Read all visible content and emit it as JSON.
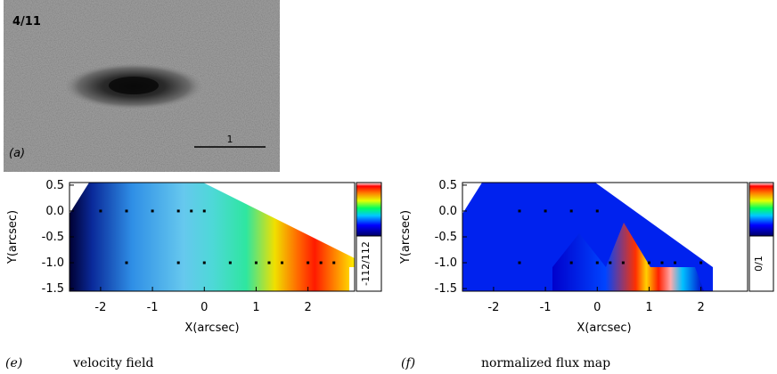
{
  "panel_a": {
    "label": "(a)",
    "corner_text": "4/11",
    "scale_bar_label": "1"
  },
  "panel_e": {
    "label": "(e)",
    "caption": "velocity field",
    "xlabel": "X(arcsec)",
    "ylabel": "Y(arcsec)",
    "x_ticks": [
      "-2",
      "-1",
      "0",
      "1",
      "2"
    ],
    "y_ticks": [
      "0.5",
      "0.0",
      "-0.5",
      "-1.0",
      "-1.5"
    ],
    "colorbar_label": "-112/112"
  },
  "panel_f": {
    "label": "(f)",
    "caption": "normalized flux map",
    "xlabel": "X(arcsec)",
    "ylabel": "Y(arcsec)",
    "x_ticks": [
      "-2",
      "-1",
      "0",
      "1",
      "2"
    ],
    "y_ticks": [
      "0.5",
      "0.0",
      "-0.5",
      "-1.0",
      "-1.5"
    ],
    "colorbar_label": "0/1"
  },
  "chart_data": [
    {
      "type": "heatmap",
      "panel": "e",
      "xlabel": "X(arcsec)",
      "ylabel": "Y(arcsec)",
      "xlim": [
        -2.6,
        2.9
      ],
      "ylim": [
        -1.55,
        0.55
      ],
      "colorbar": {
        "min": -112,
        "max": 112,
        "colormap": "rainbow"
      },
      "sample_points": [
        {
          "x": -2.0,
          "y": 0.0
        },
        {
          "x": -1.5,
          "y": 0.0
        },
        {
          "x": -1.0,
          "y": 0.0
        },
        {
          "x": -0.5,
          "y": 0.0
        },
        {
          "x": -0.25,
          "y": 0.0
        },
        {
          "x": 0.0,
          "y": 0.0
        },
        {
          "x": -1.5,
          "y": -1.0
        },
        {
          "x": -0.5,
          "y": -1.0
        },
        {
          "x": 0.0,
          "y": -1.0
        },
        {
          "x": 0.5,
          "y": -1.0
        },
        {
          "x": 1.0,
          "y": -1.0
        },
        {
          "x": 1.25,
          "y": -1.0
        },
        {
          "x": 1.5,
          "y": -1.0
        },
        {
          "x": 2.0,
          "y": -1.0
        },
        {
          "x": 2.25,
          "y": -1.0
        },
        {
          "x": 2.5,
          "y": -1.0
        }
      ]
    },
    {
      "type": "heatmap",
      "panel": "f",
      "xlabel": "X(arcsec)",
      "ylabel": "Y(arcsec)",
      "xlim": [
        -2.6,
        2.9
      ],
      "ylim": [
        -1.55,
        0.55
      ],
      "colorbar": {
        "min": 0,
        "max": 1,
        "colormap": "rainbow"
      },
      "sample_points": [
        {
          "x": -1.5,
          "y": 0.0
        },
        {
          "x": -1.0,
          "y": 0.0
        },
        {
          "x": -0.5,
          "y": 0.0
        },
        {
          "x": 0.0,
          "y": 0.0
        },
        {
          "x": -1.5,
          "y": -1.0
        },
        {
          "x": -0.5,
          "y": -1.0
        },
        {
          "x": 0.0,
          "y": -1.0
        },
        {
          "x": 0.25,
          "y": -1.0
        },
        {
          "x": 0.5,
          "y": -1.0
        },
        {
          "x": 1.0,
          "y": -1.0
        },
        {
          "x": 1.25,
          "y": -1.0
        },
        {
          "x": 1.5,
          "y": -1.0
        },
        {
          "x": 2.0,
          "y": -1.0
        }
      ]
    }
  ]
}
